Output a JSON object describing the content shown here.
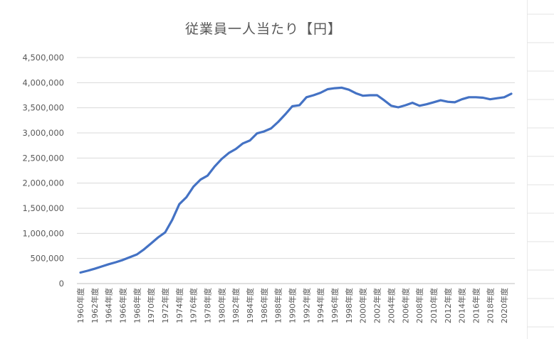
{
  "chart_data": {
    "type": "line",
    "title": "従業員一人当たり【円】",
    "xlabel": "",
    "ylabel": "",
    "ylim": [
      0,
      4500000
    ],
    "yticks": [
      "0",
      "500,000",
      "1,000,000",
      "1,500,000",
      "2,000,000",
      "2,500,000",
      "3,000,000",
      "3,500,000",
      "4,000,000",
      "4,500,000"
    ],
    "xtick_labels": [
      "1960年度",
      "1962年度",
      "1964年度",
      "1966年度",
      "1968年度",
      "1970年度",
      "1972年度",
      "1974年度",
      "1976年度",
      "1978年度",
      "1980年度",
      "1982年度",
      "1984年度",
      "1986年度",
      "1988年度",
      "1990年度",
      "1992年度",
      "1994年度",
      "1996年度",
      "1998年度",
      "2000年度",
      "2002年度",
      "2004年度",
      "2006年度",
      "2008年度",
      "2010年度",
      "2012年度",
      "2014年度",
      "2016年度",
      "2018年度",
      "2020年度"
    ],
    "grid": true,
    "legend": "none",
    "color": "#4472C4",
    "x": [
      1960,
      1961,
      1962,
      1963,
      1964,
      1965,
      1966,
      1967,
      1968,
      1969,
      1970,
      1971,
      1972,
      1973,
      1974,
      1975,
      1976,
      1977,
      1978,
      1979,
      1980,
      1981,
      1982,
      1983,
      1984,
      1985,
      1986,
      1987,
      1988,
      1989,
      1990,
      1991,
      1992,
      1993,
      1994,
      1995,
      1996,
      1997,
      1998,
      1999,
      2000,
      2001,
      2002,
      2003,
      2004,
      2005,
      2006,
      2007,
      2008,
      2009,
      2010,
      2011,
      2012,
      2013,
      2014,
      2015,
      2016,
      2017,
      2018,
      2019,
      2020,
      2021
    ],
    "values": [
      220000,
      255000,
      295000,
      340000,
      385000,
      425000,
      470000,
      525000,
      580000,
      680000,
      800000,
      920000,
      1020000,
      1270000,
      1580000,
      1720000,
      1930000,
      2070000,
      2150000,
      2330000,
      2480000,
      2600000,
      2680000,
      2790000,
      2850000,
      2990000,
      3030000,
      3090000,
      3220000,
      3370000,
      3530000,
      3550000,
      3710000,
      3750000,
      3800000,
      3870000,
      3890000,
      3900000,
      3860000,
      3790000,
      3740000,
      3750000,
      3750000,
      3650000,
      3540000,
      3510000,
      3550000,
      3600000,
      3540000,
      3570000,
      3610000,
      3650000,
      3620000,
      3610000,
      3670000,
      3710000,
      3710000,
      3700000,
      3670000,
      3690000,
      3710000,
      3780000
    ]
  }
}
